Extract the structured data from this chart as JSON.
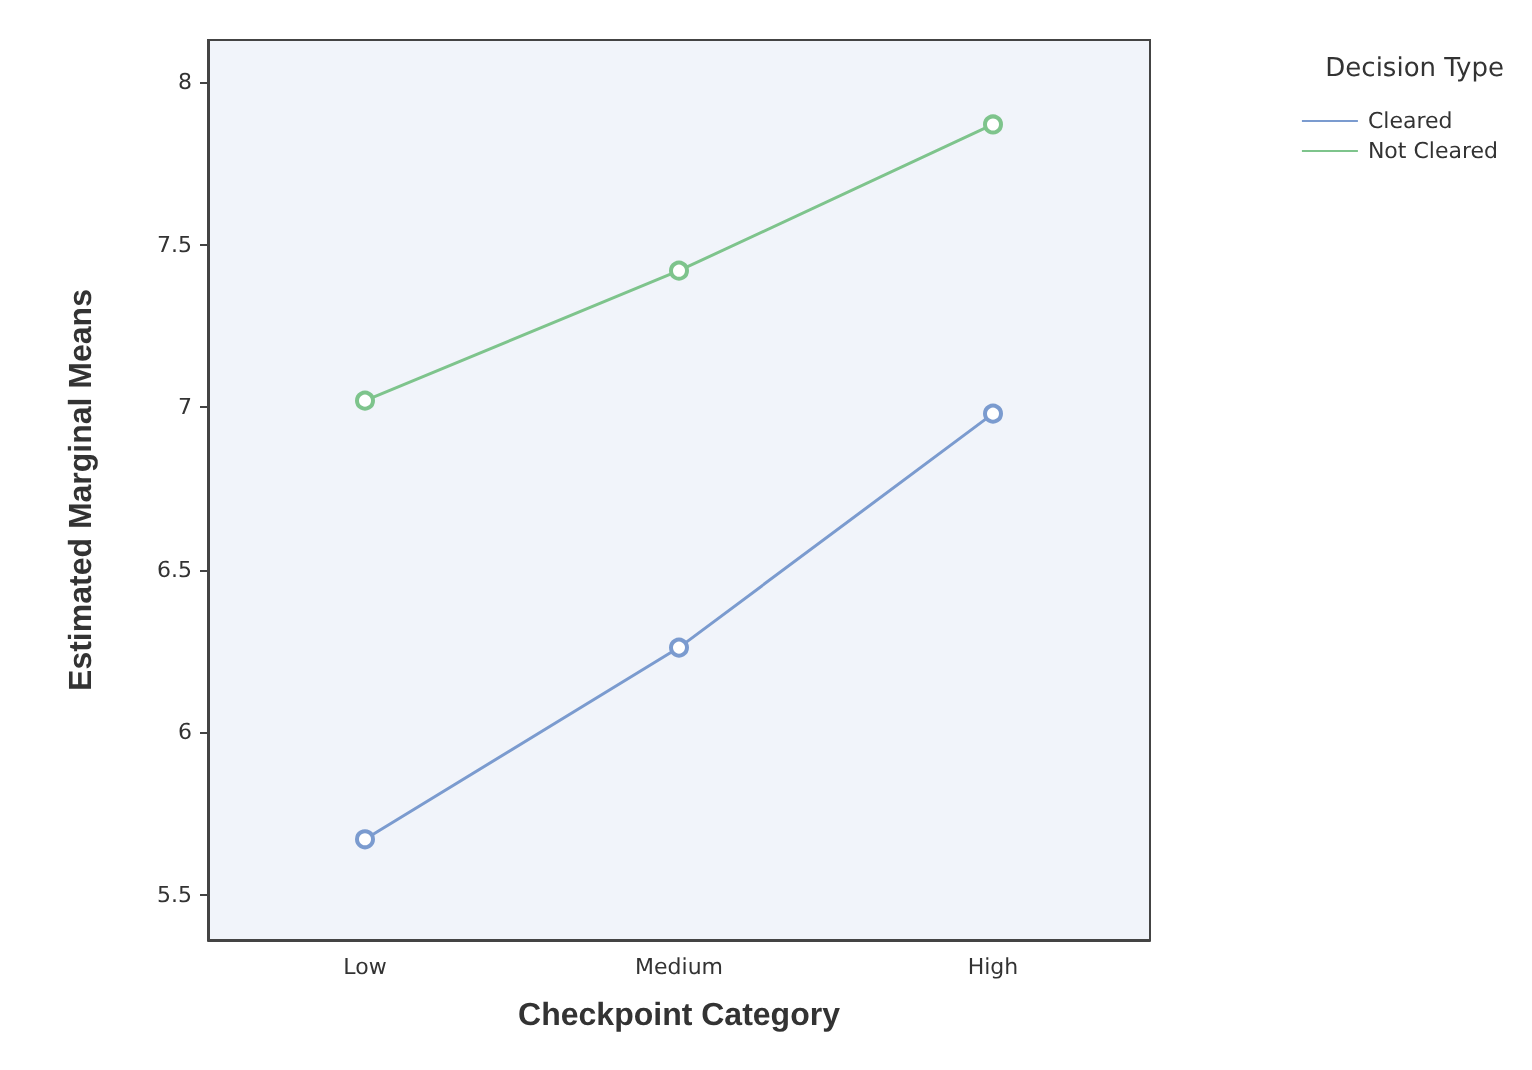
{
  "chart_data": {
    "type": "line",
    "xlabel": "Checkpoint Category",
    "ylabel": "Estimated Marginal Means",
    "legend_title": "Decision Type",
    "categories": [
      "Low",
      "Medium",
      "High"
    ],
    "series": [
      {
        "name": "Cleared",
        "color": "#7b9bcf",
        "values": [
          5.67,
          6.26,
          6.98
        ]
      },
      {
        "name": "Not Cleared",
        "color": "#7ec48c",
        "values": [
          7.02,
          7.42,
          7.87
        ]
      }
    ],
    "ylim": [
      5.36,
      8.13
    ],
    "yticks": [
      5.5,
      6,
      6.5,
      7,
      7.5,
      8
    ],
    "grid": false,
    "legend": "top right",
    "marker": "circle",
    "line_style": "solid"
  }
}
